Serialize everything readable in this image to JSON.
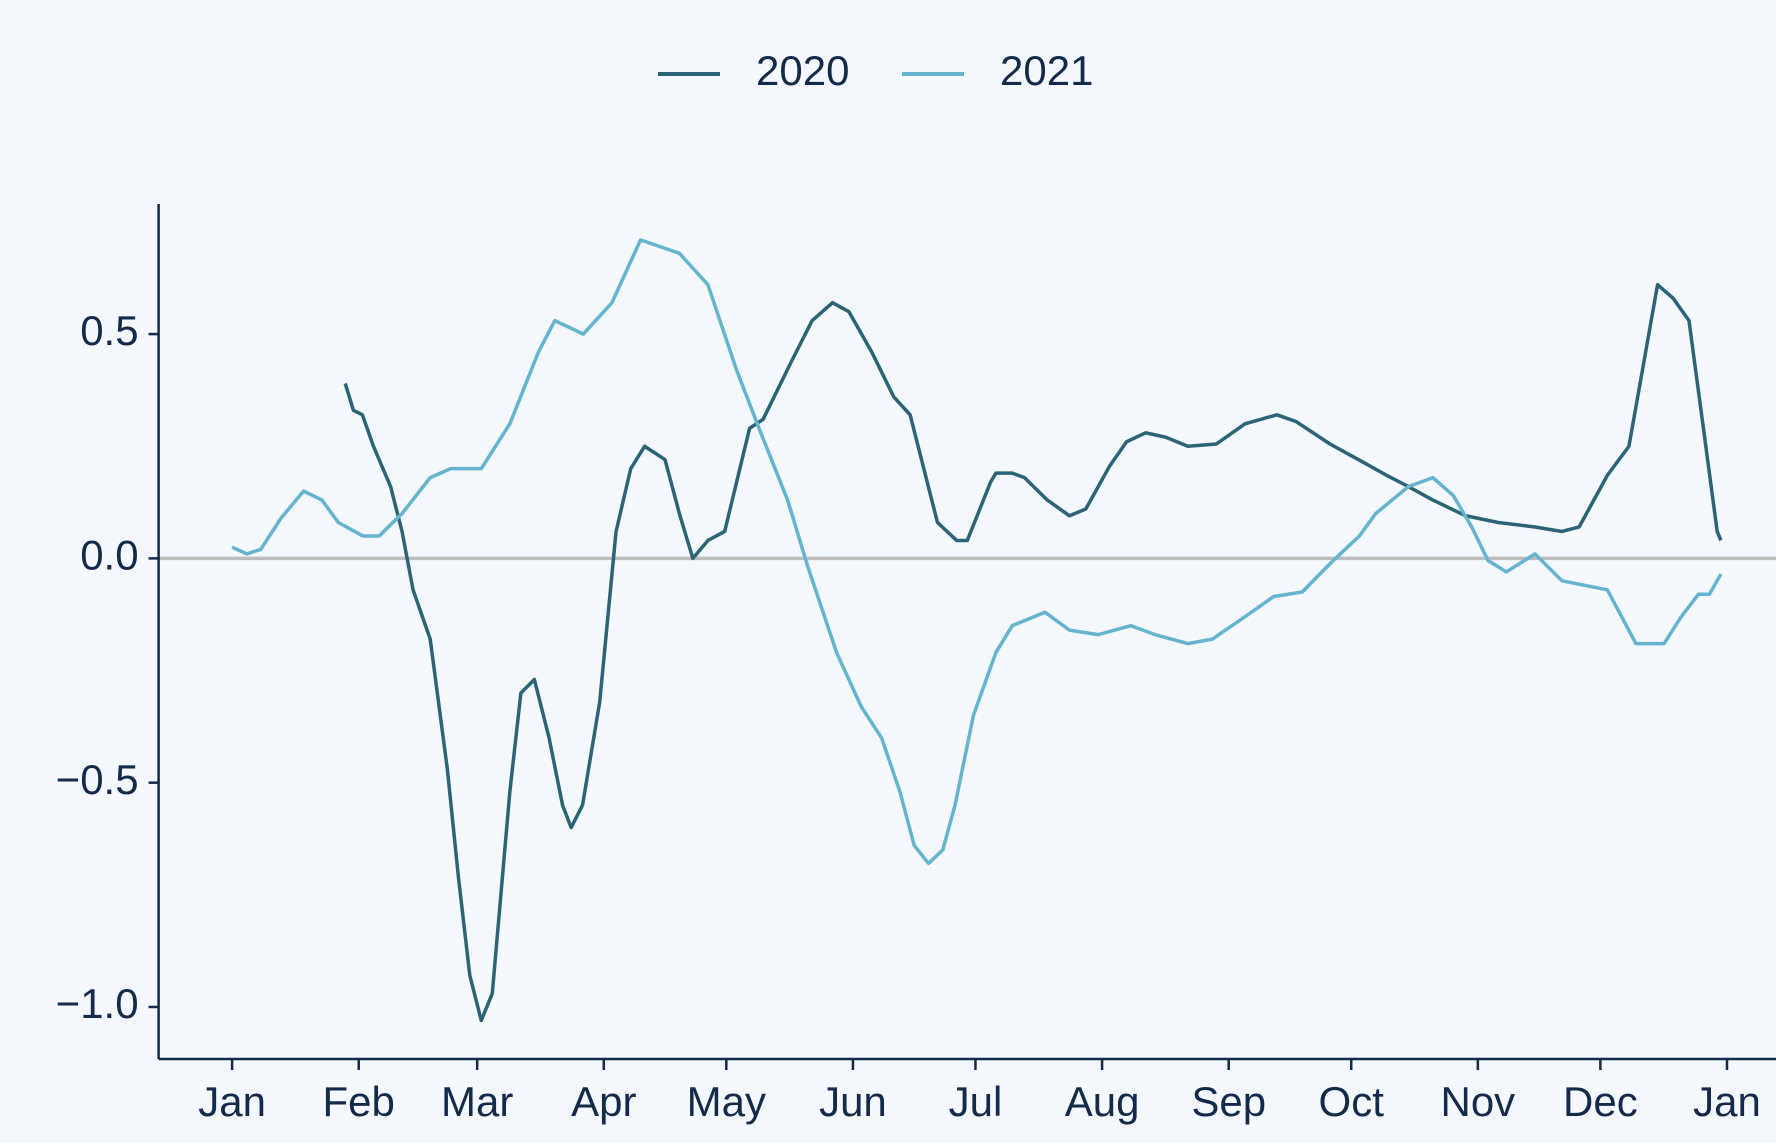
{
  "chart_data": {
    "type": "line",
    "xlim": [
      -18,
      378
    ],
    "ylim": [
      -1.116,
      0.79
    ],
    "xticks": [
      {
        "value": 0,
        "label": "Jan"
      },
      {
        "value": 31,
        "label": "Feb"
      },
      {
        "value": 60,
        "label": "Mar"
      },
      {
        "value": 91,
        "label": "Apr"
      },
      {
        "value": 121,
        "label": "May"
      },
      {
        "value": 152,
        "label": "Jun"
      },
      {
        "value": 182,
        "label": "Jul"
      },
      {
        "value": 213,
        "label": "Aug"
      },
      {
        "value": 244,
        "label": "Sep"
      },
      {
        "value": 274,
        "label": "Oct"
      },
      {
        "value": 305,
        "label": "Nov"
      },
      {
        "value": 335,
        "label": "Dec"
      },
      {
        "value": 366,
        "label": "Jan"
      }
    ],
    "yticks": [
      {
        "value": -1,
        "label": "−1.0"
      },
      {
        "value": -0.5,
        "label": "−0.5"
      },
      {
        "value": 0,
        "label": "0.0"
      },
      0.5
    ],
    "reference_line": 0,
    "legend": "top",
    "series": [
      {
        "name": "2020",
        "color": "#2b6476",
        "x": [
          27.7,
          29.7,
          31.9,
          34.6,
          38.8,
          41.6,
          44.3,
          48.5,
          52.7,
          55.4,
          58.2,
          61,
          63.7,
          68,
          70.7,
          74,
          77.6,
          80.9,
          83,
          85.8,
          90,
          94,
          97.6,
          101,
          106,
          109.5,
          112.8,
          116.5,
          120.6,
          126.7,
          130,
          137,
          142,
          147,
          151,
          156.6,
          162,
          166,
          172.7,
          177.4,
          180,
          185.7,
          187,
          191,
          194,
          199.6,
          205,
          209,
          214.8,
          219,
          223.7,
          228.6,
          234,
          241,
          248,
          255.8,
          260.5,
          268.8,
          275.8,
          282.7,
          288,
          294,
          302,
          310,
          319,
          325.6,
          329.8,
          336.7,
          342,
          349,
          352.8,
          356.7,
          360.3,
          363.6,
          364.5
        ],
        "values": [
          0.39,
          0.33,
          0.32,
          0.25,
          0.16,
          0.06,
          -0.07,
          -0.18,
          -0.47,
          -0.71,
          -0.93,
          -1.03,
          -0.97,
          -0.52,
          -0.3,
          -0.27,
          -0.4,
          -0.55,
          -0.6,
          -0.55,
          -0.32,
          0.06,
          0.2,
          0.25,
          0.22,
          0.1,
          0.0,
          0.04,
          0.06,
          0.29,
          0.31,
          0.44,
          0.53,
          0.57,
          0.55,
          0.46,
          0.36,
          0.32,
          0.08,
          0.04,
          0.04,
          0.17,
          0.19,
          0.19,
          0.18,
          0.13,
          0.095,
          0.11,
          0.205,
          0.26,
          0.28,
          0.27,
          0.25,
          0.255,
          0.3,
          0.32,
          0.305,
          0.255,
          0.22,
          0.185,
          0.16,
          0.13,
          0.095,
          0.08,
          0.07,
          0.06,
          0.07,
          0.185,
          0.25,
          0.61,
          0.58,
          0.53,
          0.285,
          0.06,
          0.04
        ]
      },
      {
        "name": "2021",
        "color": "#65b4cf",
        "x": [
          0,
          3.6,
          7,
          12,
          17.5,
          22,
          26,
          32,
          36,
          41.6,
          48.5,
          53.5,
          61,
          68,
          75,
          79,
          86,
          93,
          100,
          109.5,
          116.5,
          123.5,
          129,
          136,
          141,
          148,
          154,
          159,
          163.5,
          167,
          170.5,
          174,
          177,
          181.5,
          187,
          191,
          199,
          205,
          212,
          220,
          226,
          234,
          240,
          248,
          255,
          262,
          269,
          276,
          280,
          288,
          294,
          299,
          303.5,
          307.5,
          312,
          319,
          325.6,
          336.7,
          343.7,
          350.6,
          354.8,
          359,
          361.7,
          364.5
        ],
        "values": [
          0.025,
          0.01,
          0.02,
          0.09,
          0.15,
          0.13,
          0.08,
          0.05,
          0.05,
          0.1,
          0.18,
          0.2,
          0.2,
          0.3,
          0.46,
          0.53,
          0.5,
          0.57,
          0.71,
          0.68,
          0.61,
          0.42,
          0.29,
          0.13,
          -0.02,
          -0.21,
          -0.33,
          -0.4,
          -0.52,
          -0.64,
          -0.68,
          -0.65,
          -0.55,
          -0.35,
          -0.21,
          -0.15,
          -0.12,
          -0.16,
          -0.17,
          -0.15,
          -0.17,
          -0.19,
          -0.18,
          -0.13,
          -0.085,
          -0.075,
          -0.01,
          0.05,
          0.1,
          0.16,
          0.18,
          0.14,
          0.07,
          -0.005,
          -0.03,
          0.01,
          -0.05,
          -0.07,
          -0.19,
          -0.19,
          -0.13,
          -0.08,
          -0.08,
          -0.035
        ]
      }
    ]
  }
}
